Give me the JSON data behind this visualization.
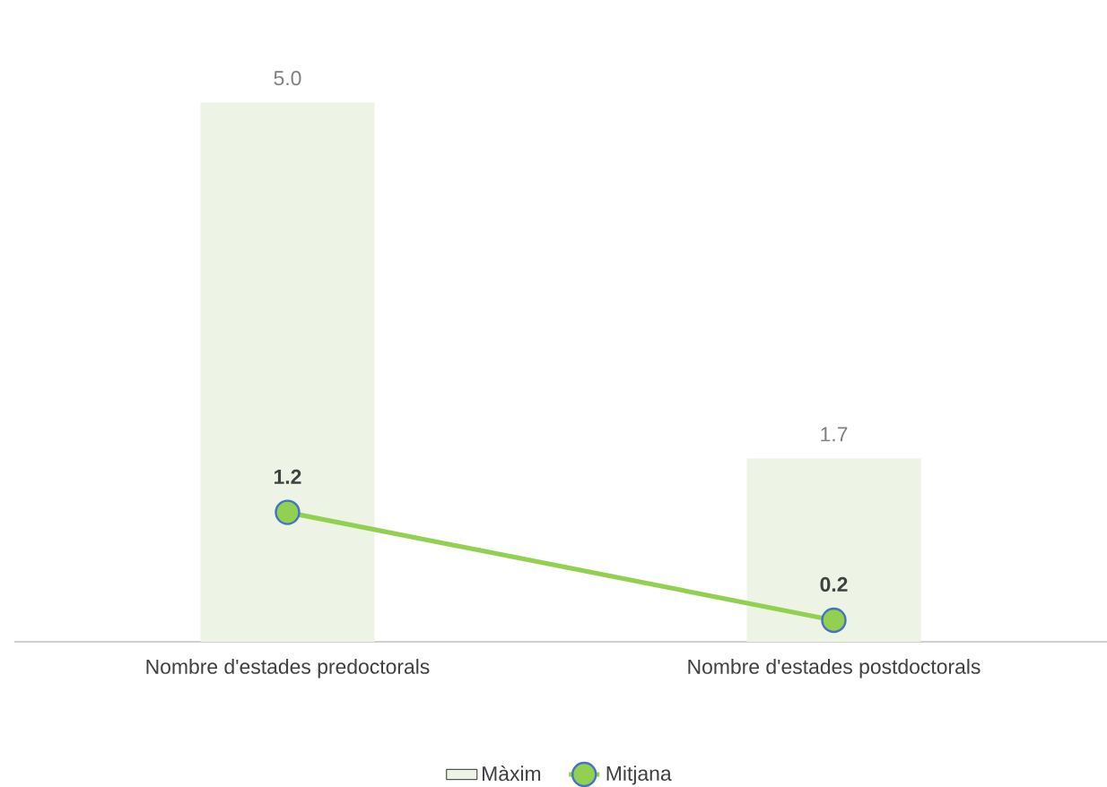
{
  "chart_data": {
    "type": "bar",
    "categories": [
      "Nombre d'estades predoctorals",
      "Nombre d'estades postdoctorals"
    ],
    "series": [
      {
        "name": "Màxim",
        "color": "#edf4e5",
        "values": [
          5.0,
          1.7
        ],
        "value_labels": [
          "5.0",
          "1.7"
        ]
      },
      {
        "name": "Mitjana",
        "type": "line",
        "color": "#92d050",
        "values": [
          1.2,
          0.2
        ],
        "value_labels": [
          "1.2",
          "0.2"
        ]
      }
    ],
    "tick_labels": "x",
    "legend": "bottom",
    "marker": "circle",
    "line_style": "solid",
    "grid": false
  }
}
